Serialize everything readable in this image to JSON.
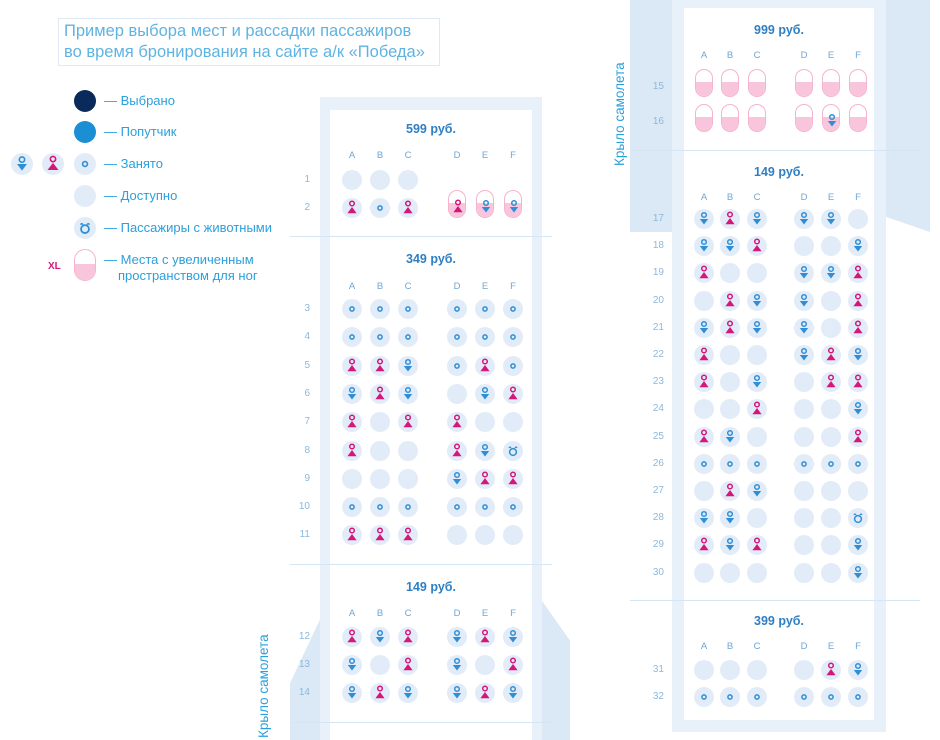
{
  "title": {
    "line1": "Пример выбора мест и рассадки пассажиров",
    "line2": "во время бронирования на сайте а/к «Победа»"
  },
  "legend": {
    "selected": "— Выбрано",
    "companion": "— Попутчик",
    "occupied": "— Занято",
    "available": "— Доступно",
    "pets": "— Пассажиры с животными",
    "xl_line1": "— Места с увеличенным",
    "xl_line2": "пространством для ног",
    "xl_badge": "XL"
  },
  "wing_label": "Крыло самолета",
  "colors": {
    "selected": "#0a2a5c",
    "companion": "#1a8fd4",
    "available": "#e1ecf8",
    "male": "#2e8ed6",
    "female": "#d6177a",
    "xl": "#f8c5dc"
  },
  "columns": [
    "A",
    "B",
    "C",
    "D",
    "E",
    "F"
  ],
  "left_sections": [
    {
      "price": "599 руб.",
      "rows": [
        {
          "n": "1",
          "seats": [
            "a",
            "a",
            "a",
            "",
            "",
            ""
          ]
        },
        {
          "n": "2",
          "seats": [
            "f",
            "n",
            "f",
            "xf",
            "xm",
            "xm"
          ]
        }
      ]
    },
    {
      "price": "349 руб.",
      "rows": [
        {
          "n": "3",
          "seats": [
            "n",
            "n",
            "n",
            "n",
            "n",
            "n"
          ]
        },
        {
          "n": "4",
          "seats": [
            "n",
            "n",
            "n",
            "n",
            "n",
            "n"
          ]
        },
        {
          "n": "5",
          "seats": [
            "f",
            "f",
            "m",
            "n",
            "f",
            "n"
          ]
        },
        {
          "n": "6",
          "seats": [
            "m",
            "f",
            "m",
            "a",
            "m",
            "f"
          ]
        },
        {
          "n": "7",
          "seats": [
            "f",
            "a",
            "f",
            "f",
            "a",
            "a"
          ]
        },
        {
          "n": "8",
          "seats": [
            "f",
            "a",
            "a",
            "f",
            "m",
            "p"
          ]
        },
        {
          "n": "9",
          "seats": [
            "a",
            "a",
            "a",
            "m",
            "f",
            "f"
          ]
        },
        {
          "n": "10",
          "seats": [
            "n",
            "n",
            "n",
            "n",
            "n",
            "n"
          ]
        },
        {
          "n": "11",
          "seats": [
            "f",
            "f",
            "f",
            "a",
            "a",
            "a"
          ]
        }
      ]
    },
    {
      "price": "149 руб.",
      "rows": [
        {
          "n": "12",
          "seats": [
            "f",
            "m",
            "f",
            "m",
            "f",
            "m"
          ]
        },
        {
          "n": "13",
          "seats": [
            "m",
            "a",
            "f",
            "m",
            "a",
            "f"
          ]
        },
        {
          "n": "14",
          "seats": [
            "m",
            "f",
            "m",
            "m",
            "f",
            "m"
          ]
        }
      ]
    }
  ],
  "right_sections": [
    {
      "price": "999 руб.",
      "rows": [
        {
          "n": "15",
          "seats": [
            "x",
            "x",
            "x",
            "x",
            "x",
            "x"
          ]
        },
        {
          "n": "16",
          "seats": [
            "x",
            "x",
            "x",
            "x",
            "xm",
            "x"
          ]
        }
      ]
    },
    {
      "price": "149 руб.",
      "rows": [
        {
          "n": "17",
          "seats": [
            "m",
            "f",
            "m",
            "m",
            "m",
            "a"
          ]
        },
        {
          "n": "18",
          "seats": [
            "m",
            "m",
            "f",
            "a",
            "a",
            "m"
          ]
        },
        {
          "n": "19",
          "seats": [
            "f",
            "a",
            "a",
            "m",
            "m",
            "f"
          ]
        },
        {
          "n": "20",
          "seats": [
            "a",
            "f",
            "m",
            "m",
            "a",
            "f"
          ]
        },
        {
          "n": "21",
          "seats": [
            "m",
            "f",
            "m",
            "m",
            "a",
            "f"
          ]
        },
        {
          "n": "22",
          "seats": [
            "f",
            "a",
            "a",
            "m",
            "f",
            "m"
          ]
        },
        {
          "n": "23",
          "seats": [
            "f",
            "a",
            "m",
            "a",
            "f",
            "f"
          ]
        },
        {
          "n": "24",
          "seats": [
            "a",
            "a",
            "f",
            "a",
            "a",
            "m"
          ]
        },
        {
          "n": "25",
          "seats": [
            "f",
            "m",
            "a",
            "a",
            "a",
            "f"
          ]
        },
        {
          "n": "26",
          "seats": [
            "n",
            "n",
            "n",
            "n",
            "n",
            "n"
          ]
        },
        {
          "n": "27",
          "seats": [
            "a",
            "f",
            "m",
            "a",
            "a",
            "a"
          ]
        },
        {
          "n": "28",
          "seats": [
            "m",
            "m",
            "a",
            "a",
            "a",
            "p"
          ]
        },
        {
          "n": "29",
          "seats": [
            "f",
            "m",
            "f",
            "a",
            "a",
            "m"
          ]
        },
        {
          "n": "30",
          "seats": [
            "a",
            "a",
            "a",
            "a",
            "a",
            "m"
          ]
        }
      ]
    },
    {
      "price": "399 руб.",
      "rows": [
        {
          "n": "31",
          "seats": [
            "a",
            "a",
            "a",
            "a",
            "f",
            "m"
          ]
        },
        {
          "n": "32",
          "seats": [
            "n",
            "n",
            "n",
            "n",
            "n",
            "n"
          ]
        }
      ]
    }
  ]
}
